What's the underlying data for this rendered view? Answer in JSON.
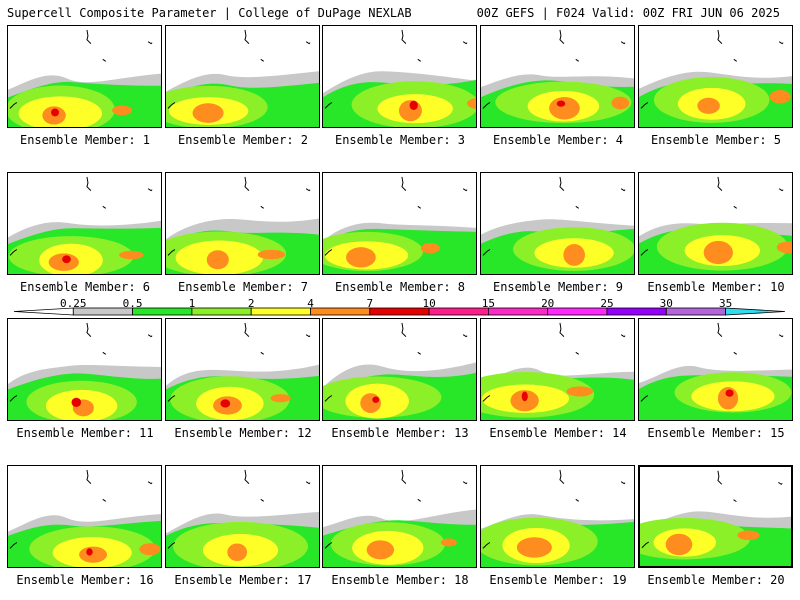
{
  "header": {
    "left_title": "Supercell Composite Parameter | College of DuPage NEXLAB",
    "right_title": "00Z GEFS | F024 Valid: 00Z FRI JUN 06 2025"
  },
  "ensemble_label_prefix": "Ensemble Member:",
  "members": [
    {
      "number": "1",
      "label": "Ensemble Member: 1"
    },
    {
      "number": "2",
      "label": "Ensemble Member: 2"
    },
    {
      "number": "3",
      "label": "Ensemble Member: 3"
    },
    {
      "number": "4",
      "label": "Ensemble Member: 4"
    },
    {
      "number": "5",
      "label": "Ensemble Member: 5"
    },
    {
      "number": "6",
      "label": "Ensemble Member: 6"
    },
    {
      "number": "7",
      "label": "Ensemble Member: 7"
    },
    {
      "number": "8",
      "label": "Ensemble Member: 8"
    },
    {
      "number": "9",
      "label": "Ensemble Member: 9"
    },
    {
      "number": "10",
      "label": "Ensemble Member: 10"
    },
    {
      "number": "11",
      "label": "Ensemble Member: 11"
    },
    {
      "number": "12",
      "label": "Ensemble Member: 12"
    },
    {
      "number": "13",
      "label": "Ensemble Member: 13"
    },
    {
      "number": "14",
      "label": "Ensemble Member: 14"
    },
    {
      "number": "15",
      "label": "Ensemble Member: 15"
    },
    {
      "number": "16",
      "label": "Ensemble Member: 16"
    },
    {
      "number": "17",
      "label": "Ensemble Member: 17"
    },
    {
      "number": "18",
      "label": "Ensemble Member: 18"
    },
    {
      "number": "19",
      "label": "Ensemble Member: 19"
    },
    {
      "number": "20",
      "label": "Ensemble Member: 20",
      "selected": true
    }
  ],
  "colorbar": {
    "levels": [
      "0.25",
      "0.5",
      "1",
      "2",
      "4",
      "7",
      "10",
      "15",
      "20",
      "25",
      "30",
      "35"
    ],
    "colors": [
      "#ffffff",
      "#c8c8c8",
      "#28e628",
      "#8cf028",
      "#ffff28",
      "#ff8c1e",
      "#e60000",
      "#ff1e8c",
      "#ff28c8",
      "#ff28ff",
      "#9600ff",
      "#b464dc",
      "#32dcf0"
    ]
  },
  "field_colors": {
    "gray": "#c8c8c8",
    "green": "#28e628",
    "lightgreen": "#8cf028",
    "yellow": "#ffff28",
    "orange": "#ff8c1e",
    "red": "#e60000"
  }
}
